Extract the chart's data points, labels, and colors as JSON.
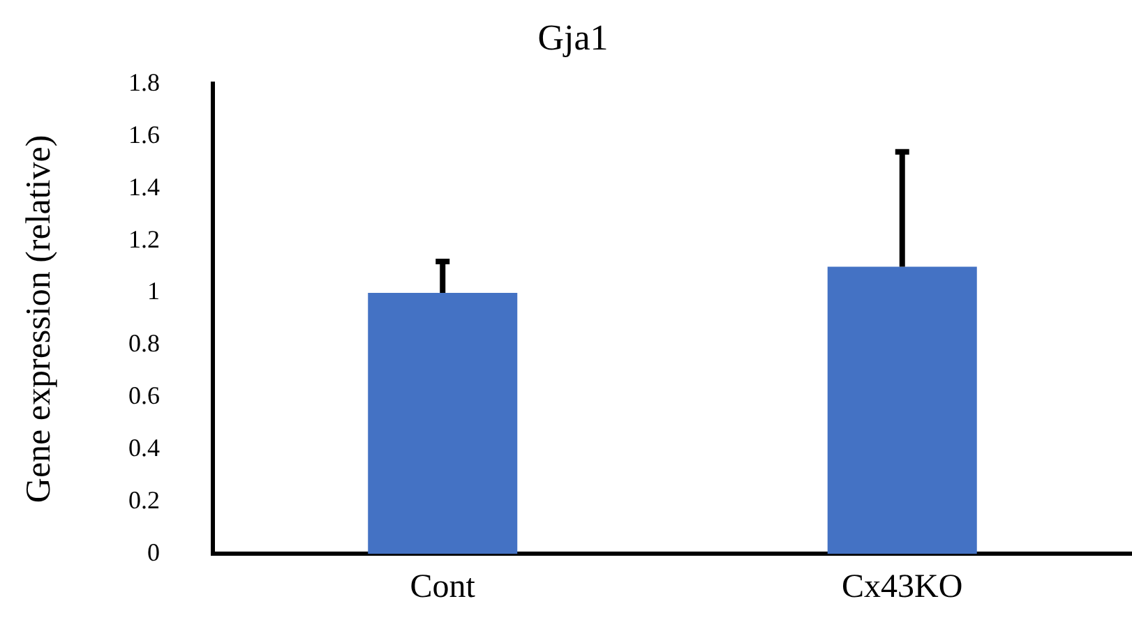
{
  "chart_data": {
    "type": "bar",
    "title": "Gja1",
    "ylabel": "Gene expression (relative)",
    "categories": [
      "Cont",
      "Cx43KO"
    ],
    "values": [
      1.0,
      1.1
    ],
    "errors": [
      [
        1.0,
        1.12
      ],
      [
        1.1,
        1.54
      ]
    ],
    "color": "#4472c4",
    "ylim": [
      0,
      1.8
    ],
    "yticks": [
      0,
      0.2,
      0.4,
      0.6,
      0.8,
      1,
      1.2,
      1.4,
      1.6,
      1.8
    ],
    "grid": false,
    "legend": false
  }
}
